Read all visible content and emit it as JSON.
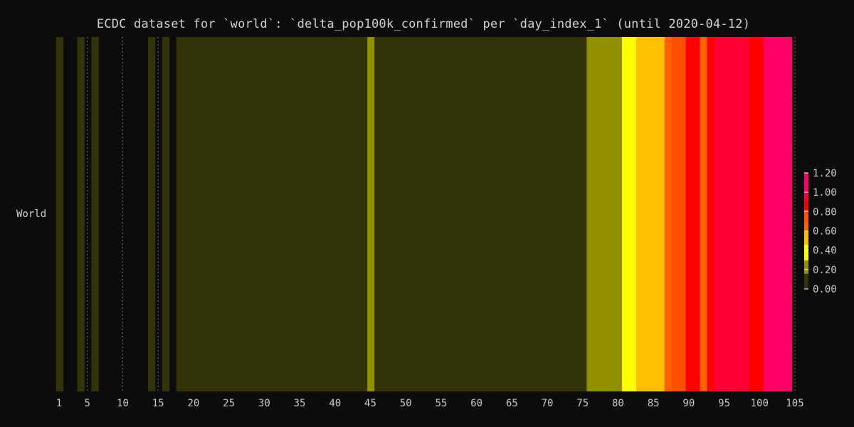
{
  "chart_data": {
    "type": "heatmap",
    "title": "ECDC dataset for `world`: `delta_pop100k_confirmed` per `day_index_1` (until 2020-04-12)",
    "ylabel_row": "World",
    "x_ticks": [
      1,
      5,
      10,
      15,
      20,
      25,
      30,
      35,
      40,
      45,
      50,
      55,
      60,
      65,
      70,
      75,
      80,
      85,
      90,
      95,
      100,
      105
    ],
    "x_range": [
      1,
      105
    ],
    "colorbar": {
      "ticks": [
        "0.00",
        "0.20",
        "0.40",
        "0.60",
        "0.80",
        "1.00",
        "1.20"
      ],
      "range": [
        0,
        1.2
      ]
    },
    "days": [
      1,
      4,
      6,
      14,
      16,
      18,
      19,
      20,
      21,
      22,
      23,
      24,
      25,
      26,
      27,
      28,
      29,
      30,
      31,
      32,
      33,
      34,
      35,
      36,
      37,
      38,
      39,
      40,
      41,
      42,
      43,
      44,
      45,
      46,
      47,
      48,
      49,
      50,
      51,
      52,
      53,
      54,
      55,
      56,
      57,
      58,
      59,
      60,
      61,
      62,
      63,
      64,
      65,
      66,
      67,
      68,
      69,
      70,
      71,
      72,
      73,
      74,
      75,
      76,
      77,
      78,
      79,
      80,
      81,
      82,
      83,
      84,
      85,
      86,
      87,
      88,
      89,
      90,
      91,
      92,
      93,
      94,
      95,
      96,
      97,
      98,
      99,
      100,
      101,
      102,
      103,
      104
    ],
    "values": [
      0.01,
      0.01,
      0.01,
      0.01,
      0.01,
      0.01,
      0.01,
      0.01,
      0.01,
      0.01,
      0.01,
      0.01,
      0.01,
      0.01,
      0.01,
      0.01,
      0.01,
      0.01,
      0.01,
      0.01,
      0.01,
      0.01,
      0.01,
      0.01,
      0.01,
      0.01,
      0.01,
      0.01,
      0.01,
      0.01,
      0.01,
      0.01,
      0.15,
      0.01,
      0.01,
      0.01,
      0.01,
      0.01,
      0.01,
      0.01,
      0.01,
      0.01,
      0.01,
      0.01,
      0.01,
      0.01,
      0.01,
      0.01,
      0.01,
      0.01,
      0.01,
      0.01,
      0.01,
      0.01,
      0.01,
      0.01,
      0.01,
      0.01,
      0.01,
      0.01,
      0.01,
      0.01,
      0.01,
      0.15,
      0.15,
      0.15,
      0.15,
      0.15,
      0.42,
      0.42,
      0.52,
      0.52,
      0.55,
      0.55,
      0.63,
      0.75,
      0.75,
      0.85,
      0.85,
      0.63,
      0.85,
      0.95,
      0.95,
      0.95,
      0.95,
      0.95,
      0.85,
      0.85,
      1.1,
      1.1,
      1.1,
      1.1
    ]
  }
}
